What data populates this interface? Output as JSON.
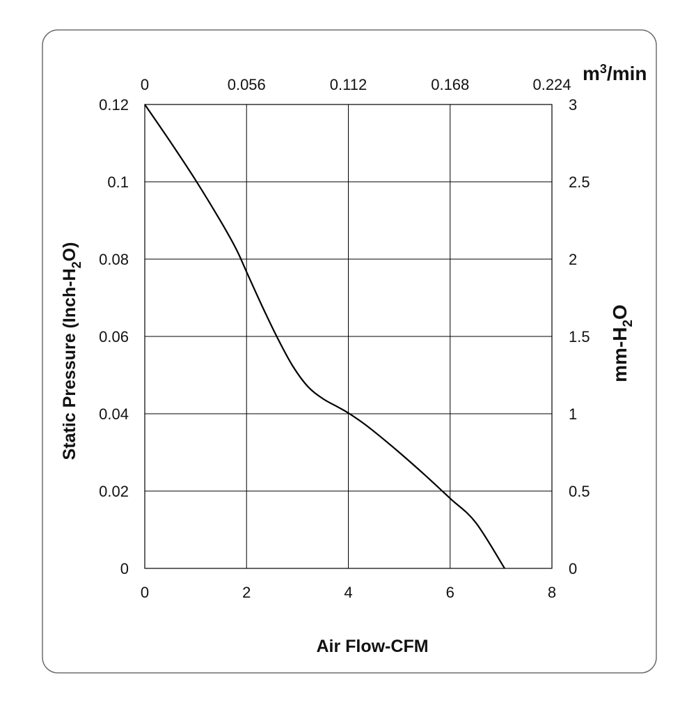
{
  "chart_data": {
    "type": "line",
    "xlabel": "Air Flow-CFM",
    "ylabel_parts": [
      "Static Pressure (Inch-H",
      "2",
      "O)"
    ],
    "x2label_parts": [
      "m",
      "3",
      "/min"
    ],
    "y2label_parts": [
      "mm-H",
      "2",
      "O"
    ],
    "xlim": [
      0,
      8
    ],
    "ylim": [
      0,
      0.12
    ],
    "x2lim": [
      0,
      0.224
    ],
    "y2lim": [
      0,
      3
    ],
    "x_ticks": [
      "0",
      "2",
      "4",
      "6",
      "8"
    ],
    "y_ticks": [
      "0",
      "0.02",
      "0.04",
      "0.06",
      "0.08",
      "0.1",
      "0.12"
    ],
    "x2_ticks": [
      "0",
      "0.056",
      "0.112",
      "0.168",
      "0.224"
    ],
    "y2_ticks": [
      "0",
      "0.5",
      "1",
      "1.5",
      "2",
      "2.5",
      "3"
    ],
    "grid": true,
    "series": [
      {
        "x": [
          0,
          0.5,
          1.0,
          1.5,
          1.8,
          2.0,
          2.3,
          2.6,
          2.9,
          3.2,
          3.5,
          3.8,
          4.0,
          4.3,
          4.6,
          5.0,
          5.5,
          6.0,
          6.5,
          7.07
        ],
        "y": [
          0.12,
          0.1104,
          0.1004,
          0.0896,
          0.0825,
          0.0767,
          0.068,
          0.0598,
          0.0525,
          0.0471,
          0.0439,
          0.0417,
          0.0402,
          0.0375,
          0.0344,
          0.03,
          0.0242,
          0.0181,
          0.0119,
          0.0
        ]
      }
    ]
  }
}
